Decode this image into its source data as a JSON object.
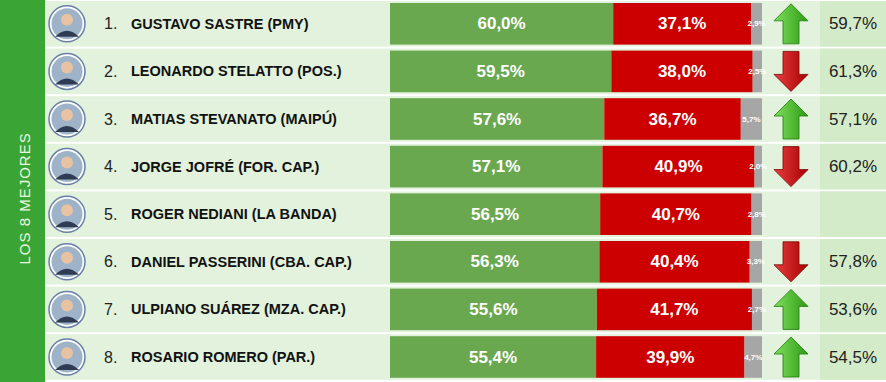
{
  "chart_data": {
    "type": "bar",
    "orientation": "horizontal",
    "stacked": true,
    "data_labels": true,
    "tick_labels": false,
    "side_label": "LOS 8 MEJORES",
    "rank_labels": [
      "1.",
      "2.",
      "3.",
      "4.",
      "5.",
      "6.",
      "7.",
      "8."
    ],
    "categories": [
      "GUSTAVO SASTRE (PMY)",
      "LEONARDO STELATTO (POS.)",
      "MATIAS STEVANATO (MAIPÚ)",
      "JORGE JOFRÉ (FOR. CAP.)",
      "ROGER NEDIANI (LA BANDA)",
      "DANIEL PASSERINI (CBA. CAP.)",
      "ULPIANO SUÁREZ (MZA. CAP.)",
      "ROSARIO ROMERO (PAR.)"
    ],
    "xlim": [
      0,
      100
    ],
    "series": [
      {
        "color": "#6aa84f",
        "values": [
          60.0,
          59.5,
          57.6,
          57.1,
          56.5,
          56.3,
          55.6,
          55.4
        ],
        "value_labels": [
          "60,0%",
          "59,5%",
          "57,6%",
          "57,1%",
          "56,5%",
          "56,3%",
          "55,6%",
          "55,4%"
        ]
      },
      {
        "color": "#cc0000",
        "values": [
          37.1,
          38.0,
          36.7,
          40.9,
          40.7,
          40.4,
          41.7,
          39.9
        ],
        "value_labels": [
          "37,1%",
          "38,0%",
          "36,7%",
          "40,9%",
          "40,7%",
          "40,4%",
          "41,7%",
          "39,9%"
        ]
      },
      {
        "color": "#a6a6a6",
        "values": [
          2.9,
          2.5,
          5.7,
          2.0,
          2.8,
          3.3,
          2.7,
          4.7
        ],
        "value_labels": [
          "2,9%",
          "2,5%",
          "5,7%",
          "2,0%",
          "2,8%",
          "3,3%",
          "2,7%",
          "4,7%"
        ]
      }
    ],
    "previous": {
      "values": [
        59.7,
        61.3,
        57.1,
        60.2,
        null,
        57.8,
        53.6,
        54.5
      ],
      "value_labels": [
        "59,7%",
        "61,3%",
        "57,1%",
        "60,2%",
        null,
        "57,8%",
        "53,6%",
        "54,5%"
      ]
    }
  }
}
